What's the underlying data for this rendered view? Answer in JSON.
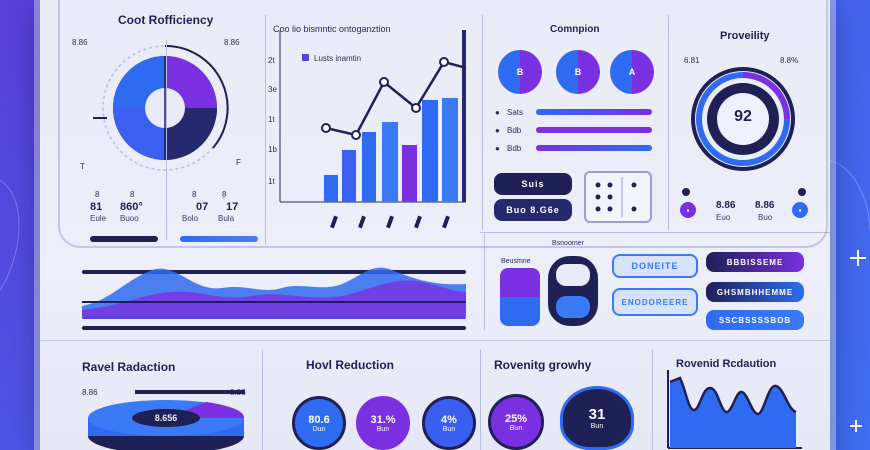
{
  "sections": {
    "cost_efficiency": {
      "title": "Coot Rofficiency",
      "left_tick": "8.86",
      "right_tick": "8.86",
      "stats": [
        {
          "value": "81",
          "label": "Eule"
        },
        {
          "value": "860°",
          "label": "Buoo"
        },
        {
          "value": "07",
          "label": "Bolo"
        },
        {
          "value": "17",
          "label": "Bula"
        }
      ],
      "tick_l": "T",
      "tick_r": "F",
      "small_a": "8",
      "small_b": "8",
      "small_c": "8",
      "small_d": "8"
    },
    "chart": {
      "title": "Coo lio bismntic ontoganztion",
      "legend": "Lusts inamtin",
      "y_ticks": [
        "2t",
        "3e",
        "1t",
        "1b",
        "1t",
        "1t"
      ]
    },
    "campaign": {
      "title": "Comnpion",
      "toggles": [
        "B",
        "B",
        "A"
      ],
      "sliders": [
        {
          "label": "Sats"
        },
        {
          "label": "Bdb"
        },
        {
          "label": "Bdb"
        }
      ]
    },
    "proveility": {
      "title": "Proveility",
      "gauge_value": "92",
      "tick_l": "6.81",
      "tick_r": "8.8%",
      "stats": [
        {
          "value": "8.86",
          "label": "Euo"
        },
        {
          "value": "8.86",
          "label": "Buo"
        }
      ]
    },
    "controls": {
      "chip_a": "Suis",
      "chip_b": "Buo 8.G6e",
      "heading": "Bsnoomer",
      "mini_a": "Beusmne",
      "buttons": [
        "DONEITE",
        "ENODOREERE",
        "BBBISSEME",
        "GHSMBHHEMME",
        "SSCBSSSSBOB"
      ]
    },
    "revel": {
      "title": "Ravel Radaction",
      "left": "8.86",
      "right": "8.86",
      "donut_value": "8.656"
    },
    "hovel": {
      "title": "Hovl Reduction",
      "circles": [
        {
          "value": "80.6",
          "label": "Dun"
        },
        {
          "value": "31.%",
          "label": "Bun"
        },
        {
          "value": "4%",
          "label": "Bun"
        },
        {
          "value": "25%",
          "label": "Bun"
        },
        {
          "value": "31",
          "label": "Bun"
        }
      ]
    },
    "revgrowth": {
      "title": "Rovenitg growhy"
    },
    "revred": {
      "title": "Rovenid Rcdaution"
    }
  },
  "colors": {
    "navy": "#1e2056",
    "purple": "#7a2fe0",
    "blue": "#2f6bf0",
    "violet": "#5a3fd8"
  }
}
